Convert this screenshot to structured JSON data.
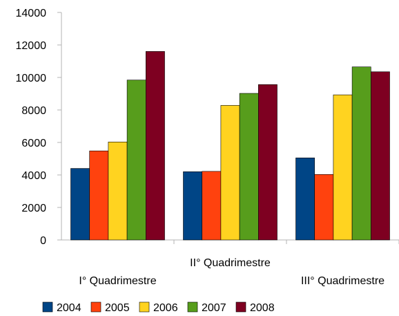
{
  "chart_data": {
    "type": "bar",
    "title": "",
    "xlabel": "",
    "ylabel": "",
    "categories": [
      "I° Quadrimestre",
      "II° Quadrimestre",
      "III° Quadrimestre"
    ],
    "series": [
      {
        "name": "2004",
        "color": "#004586",
        "values": [
          4400,
          4200,
          5050
        ]
      },
      {
        "name": "2005",
        "color": "#ff420e",
        "values": [
          5480,
          4220,
          4030
        ]
      },
      {
        "name": "2006",
        "color": "#ffd320",
        "values": [
          6030,
          8280,
          8930
        ]
      },
      {
        "name": "2007",
        "color": "#579d1c",
        "values": [
          9840,
          9020,
          10650
        ]
      },
      {
        "name": "2008",
        "color": "#7e0021",
        "values": [
          11600,
          9560,
          10350
        ]
      }
    ],
    "ylim": [
      0,
      14000
    ],
    "yticks": [
      0,
      2000,
      4000,
      6000,
      8000,
      10000,
      12000,
      14000
    ],
    "grid": false,
    "legend_position": "bottom"
  }
}
